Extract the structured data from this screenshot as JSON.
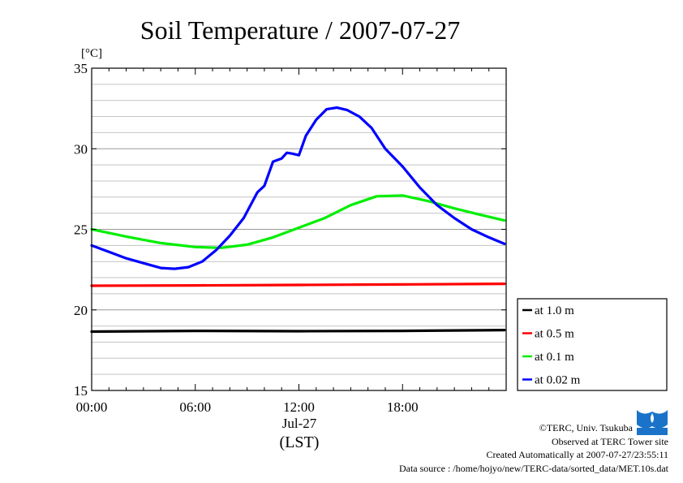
{
  "chart_data": {
    "type": "line",
    "title": "Soil Temperature / 2007-07-27",
    "ylabel": "[°C]",
    "ylim": [
      15,
      35
    ],
    "yticks": [
      "35",
      "30",
      "25",
      "20",
      "15"
    ],
    "xlim": [
      0,
      24
    ],
    "xticks": [
      {
        "hour": 0,
        "label": "00:00"
      },
      {
        "hour": 6,
        "label": "06:00"
      },
      {
        "hour": 12,
        "label": "12:00"
      },
      {
        "hour": 18,
        "label": "18:00"
      }
    ],
    "xdate_label": "Jul-27",
    "xunit_label": "(LST)",
    "grid": true,
    "legend_position": "right",
    "series": [
      {
        "name": "at 1.0 m",
        "color": "#000000",
        "x": [
          0,
          6,
          12,
          18,
          23.9
        ],
        "y": [
          18.65,
          18.7,
          18.68,
          18.7,
          18.75
        ]
      },
      {
        "name": "at 0.5 m",
        "color": "#ff0000",
        "x": [
          0,
          6,
          12,
          18,
          23.9
        ],
        "y": [
          21.5,
          21.52,
          21.55,
          21.58,
          21.62
        ]
      },
      {
        "name": "at 0.1 m",
        "color": "#00ee00",
        "x": [
          0,
          2,
          4,
          6,
          7.5,
          9,
          10.5,
          12,
          13.5,
          15,
          16.5,
          18,
          19.5,
          21,
          22.5,
          23.9
        ],
        "y": [
          25.0,
          24.55,
          24.15,
          23.9,
          23.85,
          24.05,
          24.5,
          25.1,
          25.7,
          26.5,
          27.05,
          27.1,
          26.75,
          26.3,
          25.9,
          25.55
        ]
      },
      {
        "name": "at 0.02 m",
        "color": "#0000ff",
        "x": [
          0,
          1,
          2,
          3,
          4,
          4.8,
          5.6,
          6.4,
          7.2,
          8,
          8.8,
          9.6,
          10,
          10.5,
          11,
          11.3,
          11.6,
          12,
          12.4,
          13,
          13.6,
          14.2,
          14.8,
          15.5,
          16.2,
          17,
          18,
          19,
          20,
          21,
          22,
          23,
          23.9
        ],
        "y": [
          24.0,
          23.6,
          23.2,
          22.9,
          22.6,
          22.55,
          22.65,
          23.0,
          23.7,
          24.6,
          25.7,
          27.3,
          27.7,
          29.2,
          29.4,
          29.75,
          29.7,
          29.6,
          30.8,
          31.8,
          32.45,
          32.55,
          32.4,
          32.0,
          31.3,
          30.0,
          28.9,
          27.6,
          26.5,
          25.7,
          25.0,
          24.5,
          24.1
        ]
      }
    ]
  },
  "footer": {
    "copyright": "©TERC, Univ. Tsukuba",
    "site": "Observed at TERC Tower site",
    "created": "Created Automatically at 2007-07-27/23:55:11",
    "source": "Data source : /home/hojyo/new/TERC-data/sorted_data/MET.10s.dat"
  },
  "logo": {
    "text": "TERC",
    "color": "#1a73c9"
  }
}
